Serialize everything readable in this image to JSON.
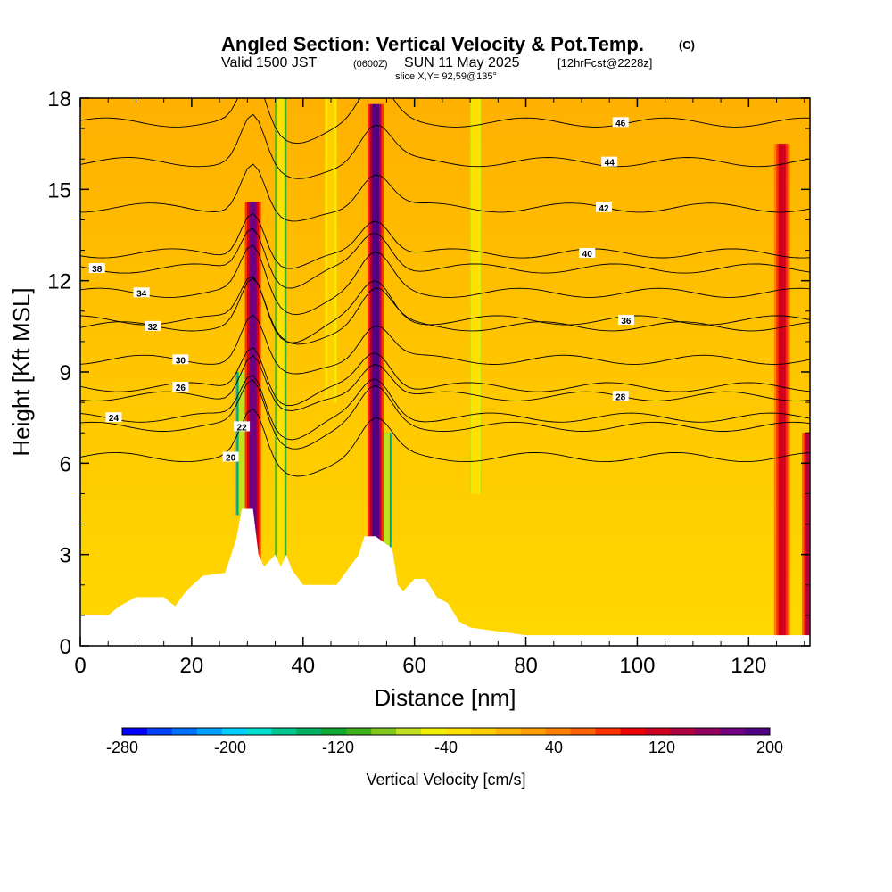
{
  "chart_data": {
    "type": "heatmap",
    "title": "Angled Section: Vertical Velocity & Pot.Temp.",
    "title_unit": "(C)",
    "subtitle_pre": "Valid 1500 JST",
    "subtitle_z": "(0600Z)",
    "subtitle_date": "SUN 11 May 2025",
    "subtitle_fcst": "[12hrFcst@2228z]",
    "subtitle2": "slice X,Y= 92,59@135°",
    "xlabel": "Distance [nm]",
    "ylabel": "Height [Kft MSL]",
    "xlim": [
      0,
      131
    ],
    "ylim": [
      0,
      18
    ],
    "xticks": [
      "0",
      "20",
      "40",
      "60",
      "80",
      "100",
      "120"
    ],
    "yticks": [
      "0",
      "3",
      "6",
      "9",
      "12",
      "15",
      "18"
    ],
    "colorbar": {
      "label": "Vertical Velocity [cm/s]",
      "range": [
        -280,
        200
      ],
      "tick_labels": [
        "-280",
        "-200",
        "-120",
        "-40",
        "40",
        "120",
        "200"
      ],
      "colors": [
        "#0000ff",
        "#0040ff",
        "#0070ff",
        "#00a0ff",
        "#00d0ff",
        "#00e0d0",
        "#00c890",
        "#00b060",
        "#10a830",
        "#40b020",
        "#80c820",
        "#c0e020",
        "#f0f000",
        "#ffe000",
        "#ffd000",
        "#ffb800",
        "#ffa000",
        "#ff8000",
        "#ff6000",
        "#ff3000",
        "#f00000",
        "#d00020",
        "#b00040",
        "#900060",
        "#700080",
        "#500080"
      ]
    },
    "updrafts": [
      {
        "x": 31,
        "top": 14.6,
        "strength": 180
      },
      {
        "x": 53,
        "top": 17.8,
        "strength": 200
      },
      {
        "x": 126,
        "top": 16.5,
        "strength": 110
      },
      {
        "x": 131,
        "top": 7.0,
        "strength": 140
      }
    ],
    "downdrafts": [
      {
        "x": 29,
        "bottom": 4.3,
        "top": 9.0,
        "strength": -230
      },
      {
        "x": 55,
        "bottom": 3.0,
        "top": 7.0,
        "strength": -210
      },
      {
        "x": 36,
        "bottom": 2.5,
        "top": 18,
        "strength": -120
      },
      {
        "x": 45,
        "bottom": 8.0,
        "top": 18,
        "strength": -60
      },
      {
        "x": 71,
        "bottom": 5.0,
        "top": 18,
        "strength": -80
      }
    ],
    "terrain_x": [
      0,
      5,
      7,
      10,
      15,
      17,
      19,
      22,
      26,
      28,
      29,
      31,
      32,
      33,
      35,
      36,
      37,
      38,
      40,
      42,
      46,
      48,
      50,
      51,
      53,
      56,
      57,
      58,
      59,
      60,
      62,
      64,
      66,
      68,
      70,
      80,
      90,
      100,
      110,
      120,
      131
    ],
    "terrain_y": [
      1.0,
      1.0,
      1.3,
      1.6,
      1.6,
      1.3,
      1.8,
      2.3,
      2.4,
      3.5,
      4.5,
      4.5,
      3.0,
      2.6,
      3.0,
      2.6,
      3.0,
      2.5,
      2.0,
      2.0,
      2.0,
      2.5,
      3.0,
      3.6,
      3.6,
      3.2,
      2.0,
      1.8,
      2.0,
      2.2,
      2.2,
      1.6,
      1.4,
      0.8,
      0.6,
      0.35,
      0.35,
      0.35,
      0.35,
      0.35,
      0.35
    ],
    "isentropes": [
      {
        "level": "20",
        "label_x": 27,
        "label_y": 6.2
      },
      {
        "level": "22",
        "label_x": 29,
        "label_y": 7.2
      },
      {
        "level": "24",
        "label_x": 6,
        "label_y": 7.5
      },
      {
        "level": "26",
        "label_x": 18,
        "label_y": 8.5
      },
      {
        "level": "28",
        "label_x": 97,
        "label_y": 8.2
      },
      {
        "level": "30",
        "label_x": 18,
        "label_y": 9.4
      },
      {
        "level": "32",
        "label_x": 13,
        "label_y": 10.5
      },
      {
        "level": "34",
        "label_x": 11,
        "label_y": 11.6
      },
      {
        "level": "36",
        "label_x": 98,
        "label_y": 10.7
      },
      {
        "level": "38",
        "label_x": 3,
        "label_y": 12.4
      },
      {
        "level": "40",
        "label_x": 91,
        "label_y": 12.9
      },
      {
        "level": "42",
        "label_x": 94,
        "label_y": 14.4
      },
      {
        "level": "44",
        "label_x": 95,
        "label_y": 15.9
      },
      {
        "level": "46",
        "label_x": 97,
        "label_y": 17.2
      }
    ]
  }
}
